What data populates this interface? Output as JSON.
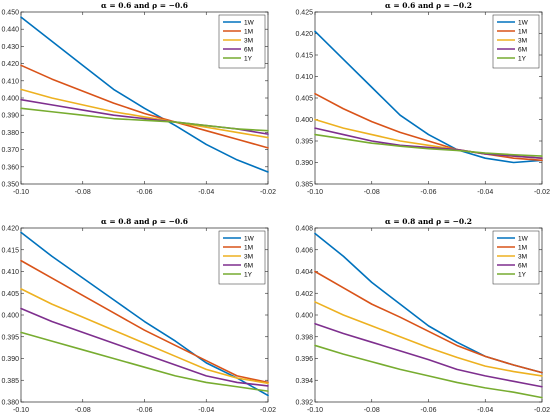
{
  "chart_data": [
    {
      "type": "line",
      "title": "α = 0.6 and ρ = −0.6",
      "xlabel": "",
      "ylabel": "",
      "xlim": [
        -0.1,
        -0.02
      ],
      "ylim": [
        0.35,
        0.45
      ],
      "xticks": [
        -0.1,
        -0.08,
        -0.06,
        -0.04,
        -0.02
      ],
      "xtick_labels": [
        "-0.10",
        "-0.08",
        "-0.06",
        "-0.04",
        "-0.02"
      ],
      "yticks": [
        0.35,
        0.36,
        0.37,
        0.38,
        0.39,
        0.4,
        0.41,
        0.42,
        0.43,
        0.44,
        0.45
      ],
      "ytick_labels": [
        "0.350",
        "0.360",
        "0.370",
        "0.380",
        "0.390",
        "0.400",
        "0.410",
        "0.420",
        "0.430",
        "0.440",
        "0.450"
      ],
      "grid": false,
      "legend": "top-right",
      "x": [
        -0.1,
        -0.09,
        -0.08,
        -0.07,
        -0.06,
        -0.05,
        -0.04,
        -0.03,
        -0.02
      ],
      "series": [
        {
          "name": "1W",
          "values": [
            0.447,
            0.433,
            0.419,
            0.405,
            0.394,
            0.384,
            0.373,
            0.364,
            0.357
          ]
        },
        {
          "name": "1M",
          "values": [
            0.419,
            0.411,
            0.404,
            0.397,
            0.391,
            0.386,
            0.381,
            0.376,
            0.371
          ]
        },
        {
          "name": "3M",
          "values": [
            0.405,
            0.4,
            0.396,
            0.392,
            0.389,
            0.386,
            0.383,
            0.38,
            0.377
          ]
        },
        {
          "name": "6M",
          "values": [
            0.399,
            0.396,
            0.393,
            0.39,
            0.388,
            0.386,
            0.384,
            0.382,
            0.379
          ]
        },
        {
          "name": "1Y",
          "values": [
            0.394,
            0.392,
            0.39,
            0.388,
            0.387,
            0.386,
            0.384,
            0.382,
            0.381
          ]
        }
      ]
    },
    {
      "type": "line",
      "title": "α = 0.6 and ρ = −0.2",
      "xlabel": "",
      "ylabel": "",
      "xlim": [
        -0.1,
        -0.02
      ],
      "ylim": [
        0.385,
        0.425
      ],
      "xticks": [
        -0.1,
        -0.08,
        -0.06,
        -0.04,
        -0.02
      ],
      "xtick_labels": [
        "-0.10",
        "-0.08",
        "-0.06",
        "-0.04",
        "-0.02"
      ],
      "yticks": [
        0.385,
        0.39,
        0.395,
        0.4,
        0.405,
        0.41,
        0.415,
        0.42,
        0.425
      ],
      "ytick_labels": [
        "0.385",
        "0.390",
        "0.395",
        "0.400",
        "0.405",
        "0.410",
        "0.415",
        "0.420",
        "0.425"
      ],
      "grid": false,
      "legend": "top-right",
      "x": [
        -0.1,
        -0.09,
        -0.08,
        -0.07,
        -0.06,
        -0.05,
        -0.04,
        -0.03,
        -0.02
      ],
      "series": [
        {
          "name": "1W",
          "values": [
            0.4205,
            0.414,
            0.4075,
            0.401,
            0.3965,
            0.393,
            0.391,
            0.39,
            0.3905
          ]
        },
        {
          "name": "1M",
          "values": [
            0.406,
            0.4025,
            0.3995,
            0.397,
            0.395,
            0.393,
            0.392,
            0.391,
            0.3905
          ]
        },
        {
          "name": "3M",
          "values": [
            0.4,
            0.398,
            0.3965,
            0.395,
            0.394,
            0.393,
            0.392,
            0.3915,
            0.391
          ]
        },
        {
          "name": "6M",
          "values": [
            0.398,
            0.3965,
            0.395,
            0.394,
            0.3935,
            0.393,
            0.392,
            0.3915,
            0.391
          ]
        },
        {
          "name": "1Y",
          "values": [
            0.3965,
            0.3955,
            0.3945,
            0.3938,
            0.3932,
            0.3928,
            0.3922,
            0.3918,
            0.3915
          ]
        }
      ]
    },
    {
      "type": "line",
      "title": "α = 0.8 and ρ = −0.6",
      "xlabel": "",
      "ylabel": "",
      "xlim": [
        -0.1,
        -0.02
      ],
      "ylim": [
        0.38,
        0.42
      ],
      "xticks": [
        -0.1,
        -0.08,
        -0.06,
        -0.04,
        -0.02
      ],
      "xtick_labels": [
        "-0.10",
        "-0.08",
        "-0.06",
        "-0.04",
        "-0.02"
      ],
      "yticks": [
        0.38,
        0.385,
        0.39,
        0.395,
        0.4,
        0.405,
        0.41,
        0.415,
        0.42
      ],
      "ytick_labels": [
        "0.380",
        "0.385",
        "0.390",
        "0.395",
        "0.400",
        "0.405",
        "0.410",
        "0.415",
        "0.420"
      ],
      "grid": false,
      "legend": "top-right",
      "x": [
        -0.1,
        -0.09,
        -0.08,
        -0.07,
        -0.06,
        -0.05,
        -0.04,
        -0.03,
        -0.02
      ],
      "series": [
        {
          "name": "1W",
          "values": [
            0.419,
            0.4135,
            0.4085,
            0.4035,
            0.3985,
            0.394,
            0.389,
            0.3855,
            0.3815
          ]
        },
        {
          "name": "1M",
          "values": [
            0.4125,
            0.4085,
            0.4045,
            0.4005,
            0.3965,
            0.393,
            0.3895,
            0.386,
            0.3845
          ]
        },
        {
          "name": "3M",
          "values": [
            0.406,
            0.4025,
            0.3995,
            0.3965,
            0.3935,
            0.3905,
            0.3875,
            0.3855,
            0.3843
          ]
        },
        {
          "name": "6M",
          "values": [
            0.4015,
            0.3985,
            0.396,
            0.3935,
            0.391,
            0.3885,
            0.386,
            0.3845,
            0.3837
          ]
        },
        {
          "name": "1Y",
          "values": [
            0.396,
            0.394,
            0.392,
            0.39,
            0.388,
            0.386,
            0.3845,
            0.3835,
            0.3825
          ]
        }
      ]
    },
    {
      "type": "line",
      "title": "α = 0.8 and ρ = −0.2",
      "xlabel": "",
      "ylabel": "",
      "xlim": [
        -0.1,
        -0.02
      ],
      "ylim": [
        0.392,
        0.408
      ],
      "xticks": [
        -0.1,
        -0.08,
        -0.06,
        -0.04,
        -0.02
      ],
      "xtick_labels": [
        "-0.10",
        "-0.08",
        "-0.06",
        "-0.04",
        "-0.02"
      ],
      "yticks": [
        0.392,
        0.394,
        0.396,
        0.398,
        0.4,
        0.402,
        0.404,
        0.406,
        0.408
      ],
      "ytick_labels": [
        "0.392",
        "0.394",
        "0.396",
        "0.398",
        "0.400",
        "0.402",
        "0.404",
        "0.406",
        "0.408"
      ],
      "grid": false,
      "legend": "top-right",
      "x": [
        -0.1,
        -0.09,
        -0.08,
        -0.07,
        -0.06,
        -0.05,
        -0.04,
        -0.03,
        -0.02
      ],
      "series": [
        {
          "name": "1W",
          "values": [
            0.4075,
            0.4054,
            0.403,
            0.401,
            0.399,
            0.3975,
            0.3962,
            0.3954,
            0.3947
          ]
        },
        {
          "name": "1M",
          "values": [
            0.404,
            0.4025,
            0.401,
            0.3998,
            0.3985,
            0.3972,
            0.3962,
            0.3954,
            0.3947
          ]
        },
        {
          "name": "3M",
          "values": [
            0.4012,
            0.4,
            0.399,
            0.398,
            0.397,
            0.3961,
            0.3953,
            0.3948,
            0.3944
          ]
        },
        {
          "name": "6M",
          "values": [
            0.3992,
            0.3983,
            0.3975,
            0.3967,
            0.3959,
            0.395,
            0.3944,
            0.3939,
            0.3934
          ]
        },
        {
          "name": "1Y",
          "values": [
            0.3972,
            0.3964,
            0.3957,
            0.395,
            0.3944,
            0.3938,
            0.3933,
            0.3929,
            0.3924
          ]
        }
      ]
    }
  ],
  "colors": {
    "1W": "#0072BD",
    "1M": "#D95319",
    "3M": "#EDB120",
    "6M": "#7E2F8E",
    "1Y": "#77AC30",
    "axes": "#262626",
    "background": "#ffffff"
  }
}
